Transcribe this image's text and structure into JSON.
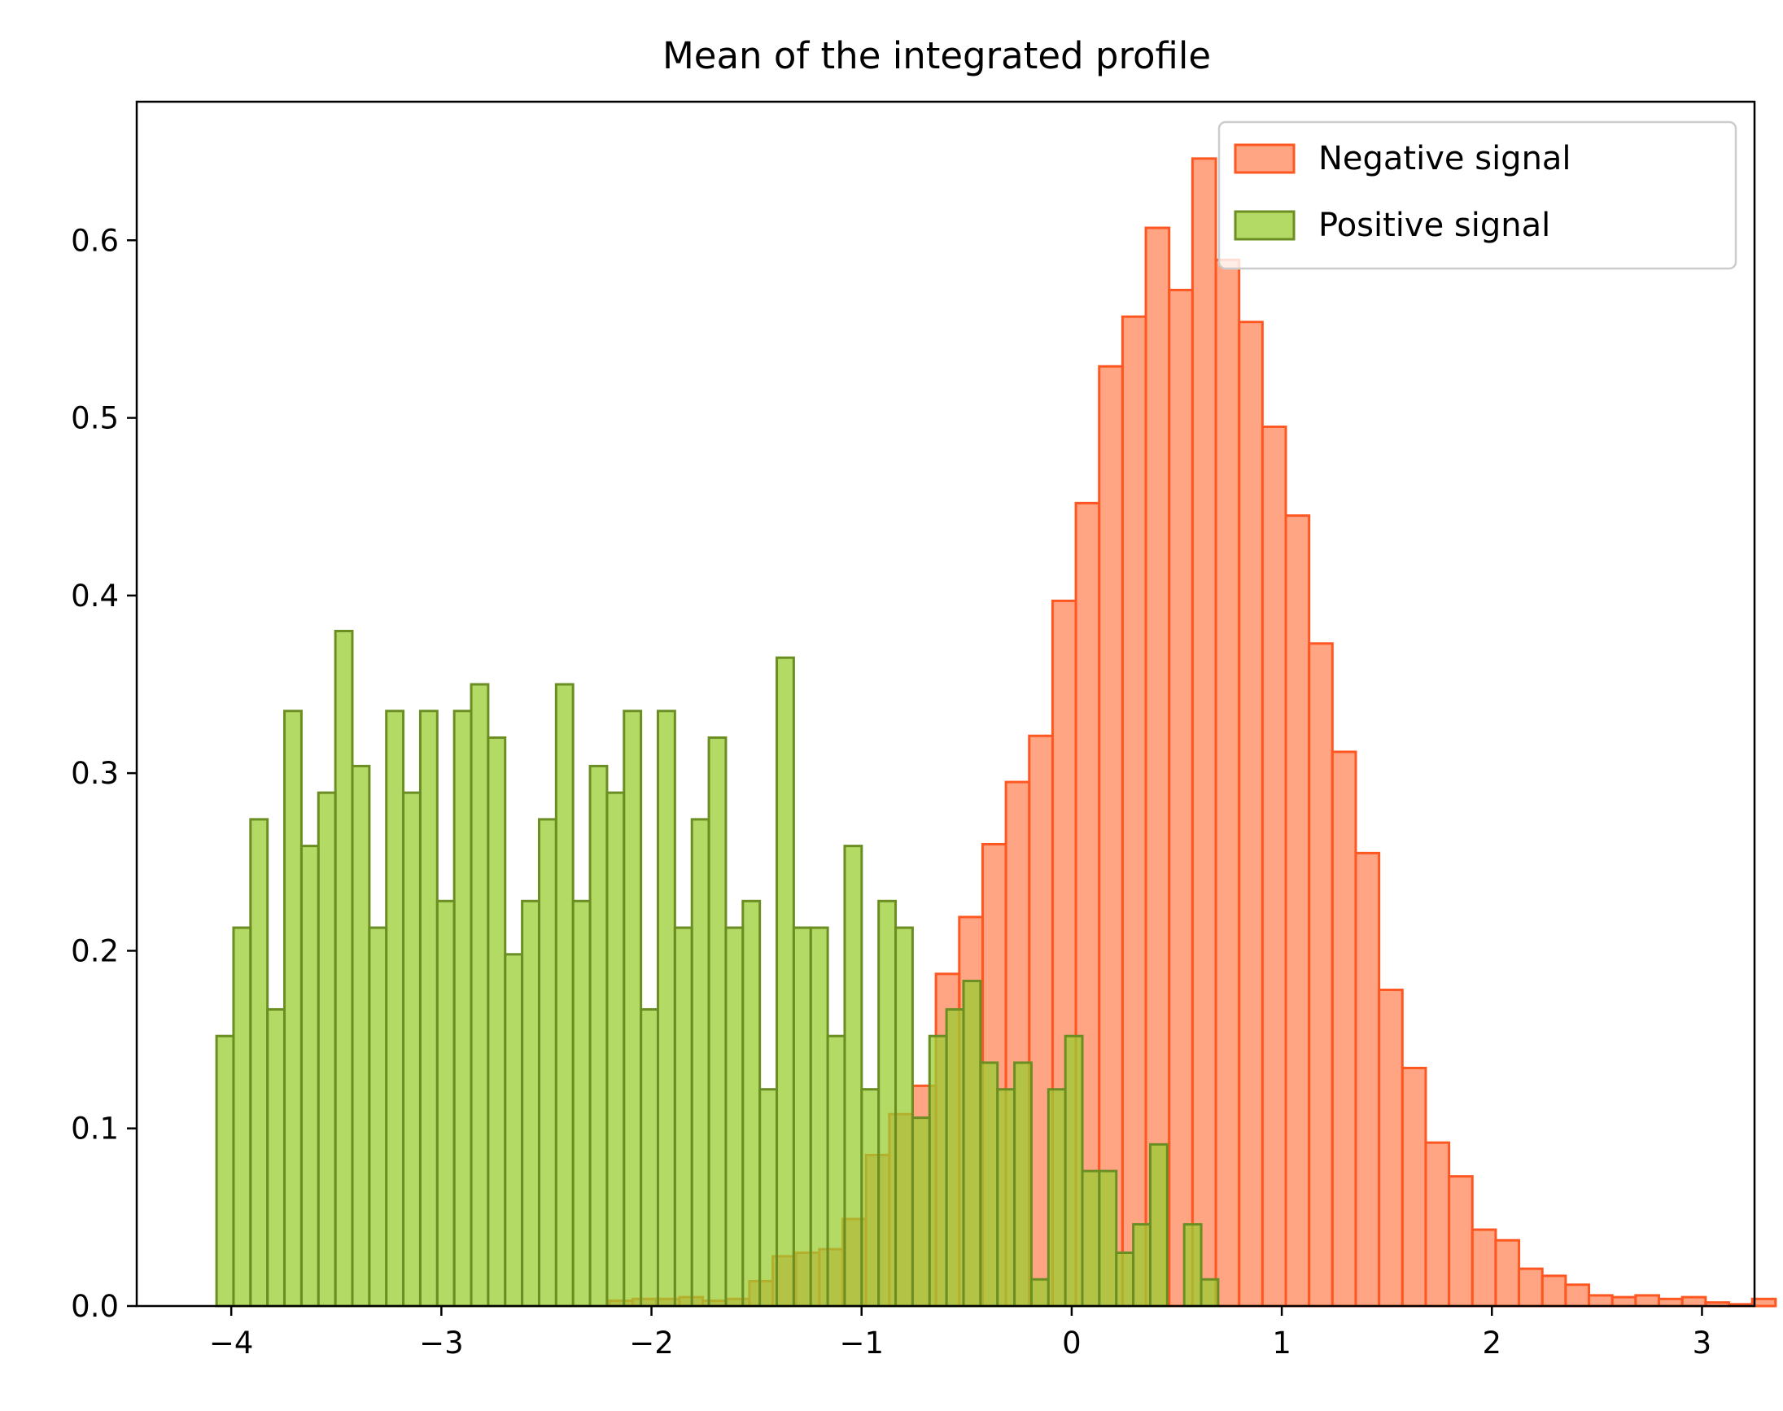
{
  "chart_data": {
    "type": "bar",
    "title": "Mean of the integrated profile",
    "xlabel": "",
    "ylabel": "",
    "xlim": [
      -4.45,
      3.25
    ],
    "ylim": [
      0,
      0.678
    ],
    "x_ticks": [
      -4,
      -3,
      -2,
      -1,
      0,
      1,
      2,
      3
    ],
    "x_tick_labels": [
      "−4",
      "−3",
      "−2",
      "−1",
      "0",
      "1",
      "2",
      "3"
    ],
    "y_ticks": [
      0,
      0.1,
      0.2,
      0.3,
      0.4,
      0.5,
      0.6
    ],
    "y_tick_labels": [
      "0.0",
      "0.1",
      "0.2",
      "0.3",
      "0.4",
      "0.5",
      "0.6"
    ],
    "grid": false,
    "legend_position": "top-right",
    "series": [
      {
        "name": "Negative signal",
        "fill": "#FF7F50",
        "fill_opacity": 0.7,
        "edge": "#FF5722",
        "bin_start": -2.2,
        "bin_width": 0.111,
        "values": [
          0.003,
          0.004,
          0.004,
          0.005,
          0.003,
          0.004,
          0.014,
          0.028,
          0.03,
          0.032,
          0.049,
          0.085,
          0.108,
          0.124,
          0.187,
          0.219,
          0.26,
          0.295,
          0.321,
          0.397,
          0.452,
          0.529,
          0.557,
          0.607,
          0.572,
          0.646,
          0.589,
          0.554,
          0.495,
          0.445,
          0.373,
          0.312,
          0.255,
          0.178,
          0.134,
          0.092,
          0.073,
          0.043,
          0.037,
          0.021,
          0.017,
          0.012,
          0.006,
          0.005,
          0.006,
          0.004,
          0.005,
          0.002,
          0.001,
          0.004
        ]
      },
      {
        "name": "Positive signal",
        "fill": "#9ACD32",
        "fill_opacity": 0.75,
        "edge": "#6B8E23",
        "bin_start": -4.07,
        "bin_width": 0.0808,
        "values": [
          0.152,
          0.213,
          0.274,
          0.167,
          0.335,
          0.259,
          0.289,
          0.38,
          0.304,
          0.213,
          0.335,
          0.289,
          0.335,
          0.228,
          0.335,
          0.35,
          0.32,
          0.198,
          0.228,
          0.274,
          0.35,
          0.228,
          0.304,
          0.289,
          0.335,
          0.167,
          0.335,
          0.213,
          0.274,
          0.32,
          0.213,
          0.228,
          0.122,
          0.365,
          0.213,
          0.213,
          0.152,
          0.259,
          0.122,
          0.228,
          0.213,
          0.106,
          0.152,
          0.167,
          0.183,
          0.137,
          0.122,
          0.137,
          0.015,
          0.122,
          0.152,
          0.076,
          0.076,
          0.03,
          0.046,
          0.091,
          0.0,
          0.046,
          0.015
        ]
      }
    ]
  }
}
